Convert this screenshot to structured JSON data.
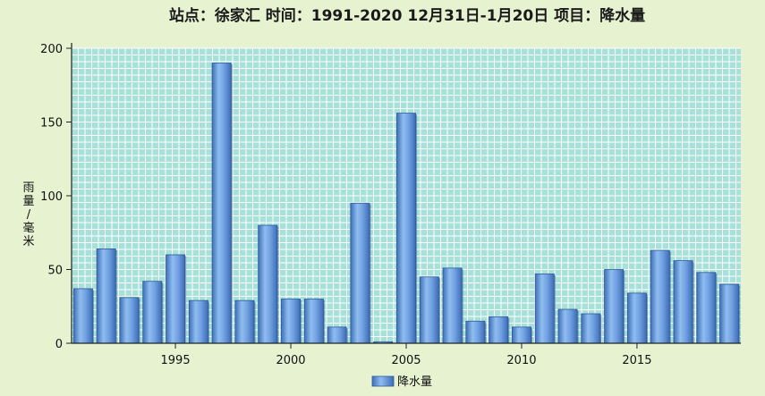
{
  "chart_data": {
    "type": "bar",
    "title": "站点：徐家汇  时间：1991-2020    12月31日-1月20日  项目：降水量",
    "ylabel": "雨量/毫米",
    "xlabel": "",
    "ylim": [
      0,
      200
    ],
    "y_ticks": [
      0,
      50,
      100,
      150,
      200
    ],
    "x_ticks": [
      1995,
      2000,
      2005,
      2010,
      2015
    ],
    "grid": true,
    "legend_position": "bottom-center",
    "bar_color": "#6a9fe0",
    "plot_background": "#a8e0da",
    "page_background": "#e6f2d0",
    "x": [
      1991,
      1992,
      1993,
      1994,
      1995,
      1996,
      1997,
      1998,
      1999,
      2000,
      2001,
      2002,
      2003,
      2004,
      2005,
      2006,
      2007,
      2008,
      2009,
      2010,
      2011,
      2012,
      2013,
      2014,
      2015,
      2016,
      2017,
      2018,
      2019
    ],
    "series": [
      {
        "name": "降水量",
        "values": [
          37,
          64,
          31,
          42,
          60,
          29,
          190,
          29,
          80,
          30,
          30,
          11,
          95,
          1,
          156,
          45,
          51,
          15,
          18,
          11,
          47,
          23,
          20,
          50,
          34,
          63,
          56,
          48,
          40
        ]
      }
    ]
  }
}
